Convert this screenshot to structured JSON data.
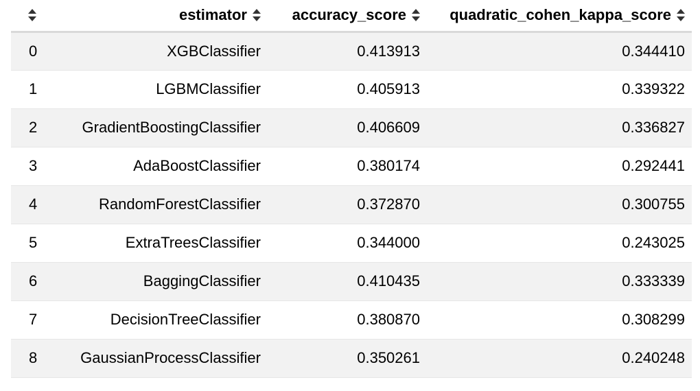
{
  "table": {
    "columns": [
      "",
      "estimator",
      "accuracy_score",
      "quadratic_cohen_kappa_score"
    ],
    "rows": [
      {
        "index": "0",
        "estimator": "XGBClassifier",
        "accuracy_score": "0.413913",
        "quadratic_cohen_kappa_score": "0.344410"
      },
      {
        "index": "1",
        "estimator": "LGBMClassifier",
        "accuracy_score": "0.405913",
        "quadratic_cohen_kappa_score": "0.339322"
      },
      {
        "index": "2",
        "estimator": "GradientBoostingClassifier",
        "accuracy_score": "0.406609",
        "quadratic_cohen_kappa_score": "0.336827"
      },
      {
        "index": "3",
        "estimator": "AdaBoostClassifier",
        "accuracy_score": "0.380174",
        "quadratic_cohen_kappa_score": "0.292441"
      },
      {
        "index": "4",
        "estimator": "RandomForestClassifier",
        "accuracy_score": "0.372870",
        "quadratic_cohen_kappa_score": "0.300755"
      },
      {
        "index": "5",
        "estimator": "ExtraTreesClassifier",
        "accuracy_score": "0.344000",
        "quadratic_cohen_kappa_score": "0.243025"
      },
      {
        "index": "6",
        "estimator": "BaggingClassifier",
        "accuracy_score": "0.410435",
        "quadratic_cohen_kappa_score": "0.333339"
      },
      {
        "index": "7",
        "estimator": "DecisionTreeClassifier",
        "accuracy_score": "0.380870",
        "quadratic_cohen_kappa_score": "0.308299"
      },
      {
        "index": "8",
        "estimator": "GaussianProcessClassifier",
        "accuracy_score": "0.350261",
        "quadratic_cohen_kappa_score": "0.240248"
      }
    ]
  },
  "icons": {
    "sort": "sort-up-down-icon"
  }
}
